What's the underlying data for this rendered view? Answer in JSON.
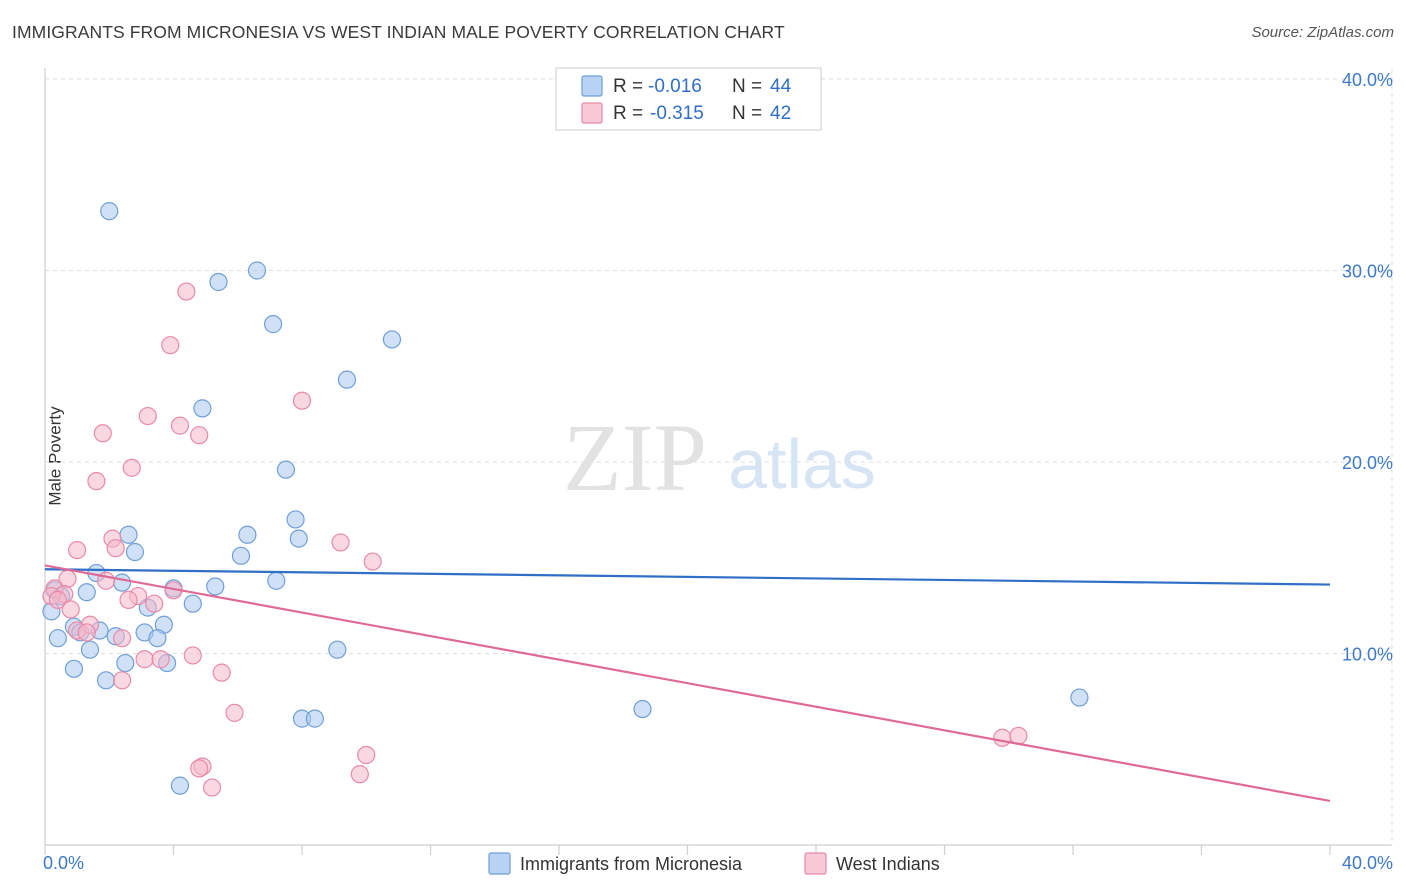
{
  "header": {
    "title": "IMMIGRANTS FROM MICRONESIA VS WEST INDIAN MALE POVERTY CORRELATION CHART",
    "source": "Source: ZipAtlas.com"
  },
  "watermark": {
    "zip": "ZIP",
    "atlas": "atlas"
  },
  "colors": {
    "blue_fill": "#a9c8f0",
    "blue_stroke": "#6f9fd8",
    "blue_line": "#2f6fc6",
    "pink_fill": "#f6b8cb",
    "pink_stroke": "#e88aa8",
    "pink_line": "#e06a97",
    "tick_text": "#3d7ac8",
    "grid": "#dddddd"
  },
  "legend": {
    "rows": [
      {
        "r_label": "R =",
        "r_value": "-0.016",
        "n_label": "N =",
        "n_value": "44"
      },
      {
        "r_label": "R =",
        "r_value": "-0.315",
        "n_label": "N =",
        "n_value": "42"
      }
    ]
  },
  "bottom_legend": [
    "Immigrants from Micronesia",
    "West Indians"
  ],
  "chart_data": {
    "type": "scatter",
    "xlabel": "",
    "ylabel": "Male Poverty",
    "xlim": [
      0,
      40
    ],
    "ylim": [
      0,
      40
    ],
    "x_tick_labels": [
      "0.0%",
      "40.0%"
    ],
    "y_tick_labels": [
      "10.0%",
      "20.0%",
      "30.0%",
      "40.0%"
    ],
    "y_ticks": [
      10,
      20,
      30,
      40
    ],
    "grid": true,
    "series": [
      {
        "name": "Immigrants from Micronesia",
        "color": "#a9c8f0",
        "trend": [
          [
            0,
            14.4
          ],
          [
            40,
            13.6
          ]
        ],
        "points": [
          [
            2.0,
            33.1
          ],
          [
            5.4,
            29.4
          ],
          [
            6.6,
            30.0
          ],
          [
            7.1,
            27.2
          ],
          [
            10.8,
            26.4
          ],
          [
            9.4,
            24.3
          ],
          [
            4.9,
            22.8
          ],
          [
            7.5,
            19.6
          ],
          [
            7.8,
            17.0
          ],
          [
            7.9,
            16.0
          ],
          [
            6.3,
            16.2
          ],
          [
            6.1,
            15.1
          ],
          [
            2.6,
            16.2
          ],
          [
            2.8,
            15.3
          ],
          [
            1.6,
            14.2
          ],
          [
            2.4,
            13.7
          ],
          [
            7.2,
            13.8
          ],
          [
            5.3,
            13.5
          ],
          [
            4.0,
            13.4
          ],
          [
            1.3,
            13.2
          ],
          [
            0.3,
            13.3
          ],
          [
            0.5,
            13.0
          ],
          [
            3.2,
            12.4
          ],
          [
            4.6,
            12.6
          ],
          [
            0.2,
            12.2
          ],
          [
            0.9,
            11.4
          ],
          [
            1.7,
            11.2
          ],
          [
            3.7,
            11.5
          ],
          [
            1.1,
            11.1
          ],
          [
            3.1,
            11.1
          ],
          [
            2.2,
            10.9
          ],
          [
            3.5,
            10.8
          ],
          [
            0.4,
            10.8
          ],
          [
            1.4,
            10.2
          ],
          [
            9.1,
            10.2
          ],
          [
            2.5,
            9.5
          ],
          [
            3.8,
            9.5
          ],
          [
            0.9,
            9.2
          ],
          [
            1.9,
            8.6
          ],
          [
            32.2,
            7.7
          ],
          [
            18.6,
            7.1
          ],
          [
            8.0,
            6.6
          ],
          [
            8.4,
            6.6
          ],
          [
            4.2,
            3.1
          ]
        ]
      },
      {
        "name": "West Indians",
        "color": "#f6b8cb",
        "trend": [
          [
            0,
            14.6
          ],
          [
            40,
            2.3
          ]
        ],
        "points": [
          [
            4.4,
            28.9
          ],
          [
            3.9,
            26.1
          ],
          [
            8.0,
            23.2
          ],
          [
            3.2,
            22.4
          ],
          [
            4.2,
            21.9
          ],
          [
            1.8,
            21.5
          ],
          [
            4.8,
            21.4
          ],
          [
            2.7,
            19.7
          ],
          [
            1.6,
            19.0
          ],
          [
            2.1,
            16.0
          ],
          [
            9.2,
            15.8
          ],
          [
            2.2,
            15.5
          ],
          [
            1.0,
            15.4
          ],
          [
            10.2,
            14.8
          ],
          [
            0.7,
            13.9
          ],
          [
            1.9,
            13.8
          ],
          [
            0.3,
            13.4
          ],
          [
            4.0,
            13.3
          ],
          [
            0.6,
            13.1
          ],
          [
            0.2,
            13.0
          ],
          [
            2.9,
            13.0
          ],
          [
            0.4,
            12.8
          ],
          [
            2.6,
            12.8
          ],
          [
            3.4,
            12.6
          ],
          [
            0.8,
            12.3
          ],
          [
            1.4,
            11.5
          ],
          [
            1.0,
            11.2
          ],
          [
            1.3,
            11.1
          ],
          [
            2.4,
            10.8
          ],
          [
            4.6,
            9.9
          ],
          [
            3.1,
            9.7
          ],
          [
            3.6,
            9.7
          ],
          [
            5.5,
            9.0
          ],
          [
            2.4,
            8.6
          ],
          [
            5.9,
            6.9
          ],
          [
            29.8,
            5.6
          ],
          [
            30.3,
            5.7
          ],
          [
            10.0,
            4.7
          ],
          [
            4.9,
            4.1
          ],
          [
            4.8,
            4.0
          ],
          [
            9.8,
            3.7
          ],
          [
            5.2,
            3.0
          ]
        ]
      }
    ]
  }
}
